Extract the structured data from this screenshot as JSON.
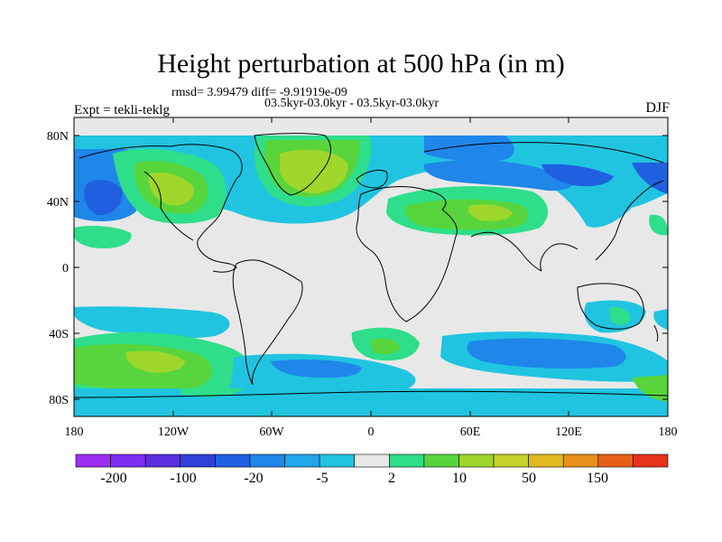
{
  "title": "Height perturbation at 500 hPa (in m)",
  "rmsd_line": "rmsd= 3.99479 diff= -9.91919e-09",
  "experiment_line": "Expt = tekli-teklg",
  "period_line": "03.5kyr-03.0kyr - 03.5kyr-03.0kyr",
  "season": "DJF",
  "map": {
    "lat_ticks": [
      "80N",
      "40N",
      "0",
      "40S",
      "80S"
    ],
    "lon_ticks": [
      "180",
      "120W",
      "60W",
      "0",
      "60E",
      "120E",
      "180"
    ]
  },
  "colorbar": {
    "colors": [
      "#9c2ef0",
      "#7c2ef0",
      "#5a30e0",
      "#3040d8",
      "#2060e0",
      "#1f86ea",
      "#20a6ea",
      "#20c4e0",
      "#e8e8e8",
      "#2ede8a",
      "#58d53c",
      "#9ed62c",
      "#c8d22c",
      "#e0b820",
      "#e8901c",
      "#e86018",
      "#e8321c"
    ],
    "labels": [
      "-200",
      "-100",
      "-20",
      "-5",
      "2",
      "10",
      "50",
      "150"
    ]
  },
  "legend": {
    "ocean_background": "#e8e8e8",
    "coastline": "#000000"
  }
}
